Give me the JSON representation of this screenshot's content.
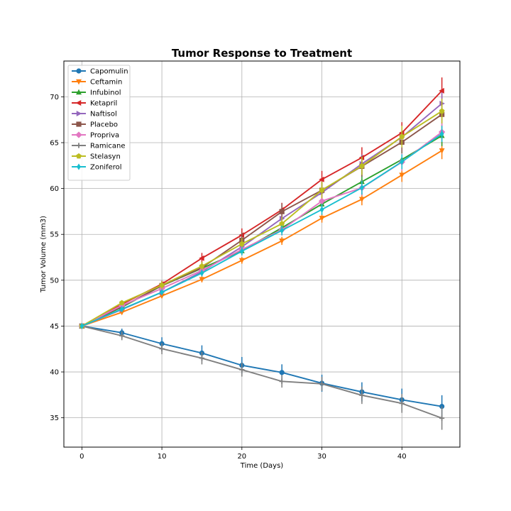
{
  "chart_data": {
    "type": "line",
    "title": "Tumor Response to Treatment",
    "xlabel": "Time (Days)",
    "ylabel": "Tumor Volume (mm3)",
    "xlim": [
      -2.25,
      47.25
    ],
    "ylim": [
      31.8,
      73.9
    ],
    "xticks": [
      0,
      10,
      20,
      30,
      40
    ],
    "yticks": [
      35,
      40,
      45,
      50,
      55,
      60,
      65,
      70
    ],
    "grid": true,
    "legend_position": "upper-left",
    "x": [
      0,
      5,
      10,
      15,
      20,
      25,
      30,
      35,
      40,
      45
    ],
    "series": [
      {
        "name": "Capomulin",
        "color": "#1f77b4",
        "marker": "circle",
        "values": [
          45.0,
          44.27,
          43.08,
          42.06,
          40.72,
          39.94,
          38.77,
          37.82,
          36.96,
          36.24
        ],
        "errors": [
          0,
          0.45,
          0.7,
          0.84,
          0.91,
          0.89,
          0.93,
          1.05,
          1.22,
          1.22
        ]
      },
      {
        "name": "Ceftamin",
        "color": "#ff7f0e",
        "marker": "triangle-down",
        "values": [
          45.0,
          46.5,
          48.29,
          50.09,
          52.16,
          54.29,
          56.77,
          58.83,
          61.47,
          64.13
        ],
        "errors": [
          0,
          0.16,
          0.24,
          0.33,
          0.36,
          0.44,
          0.49,
          0.66,
          0.75,
          0.93
        ]
      },
      {
        "name": "Infubinol",
        "color": "#2ca02c",
        "marker": "triangle-up",
        "values": [
          45.0,
          47.06,
          49.4,
          51.3,
          53.2,
          55.72,
          58.3,
          60.74,
          63.16,
          65.76
        ],
        "errors": [
          0,
          0.24,
          0.28,
          0.36,
          0.48,
          0.55,
          0.63,
          0.98,
          1.06,
          1.14
        ]
      },
      {
        "name": "Ketapril",
        "color": "#d62728",
        "marker": "triangle-left",
        "values": [
          45.0,
          47.39,
          49.58,
          52.4,
          54.92,
          57.68,
          60.99,
          63.37,
          66.07,
          70.66
        ],
        "errors": [
          0,
          0.26,
          0.36,
          0.58,
          0.73,
          0.76,
          0.93,
          1.13,
          1.16,
          1.45
        ]
      },
      {
        "name": "Naftisol",
        "color": "#9467bd",
        "marker": "triangle-right",
        "values": [
          45.0,
          46.8,
          48.69,
          50.93,
          53.64,
          56.73,
          59.56,
          62.69,
          65.6,
          69.27
        ],
        "errors": [
          0,
          0.2,
          0.35,
          0.5,
          0.6,
          0.81,
          0.98,
          1.01,
          1.08,
          1.21
        ]
      },
      {
        "name": "Placebo",
        "color": "#8c564b",
        "marker": "square",
        "values": [
          45.0,
          47.13,
          49.42,
          51.36,
          54.36,
          57.48,
          59.81,
          62.42,
          65.05,
          68.08
        ],
        "errors": [
          0,
          0.22,
          0.4,
          0.61,
          0.84,
          0.88,
          0.93,
          1.13,
          1.16,
          1.29
        ]
      },
      {
        "name": "Propriva",
        "color": "#e377c2",
        "marker": "diamond",
        "values": [
          45.0,
          47.25,
          49.1,
          51.07,
          53.35,
          55.5,
          58.63,
          60.07,
          62.89,
          66.16
        ],
        "errors": [
          0,
          0.23,
          0.38,
          0.47,
          0.56,
          0.63,
          0.72,
          0.84,
          0.95,
          1.07
        ]
      },
      {
        "name": "Ramicane",
        "color": "#7f7f7f",
        "marker": "plus",
        "values": [
          45.0,
          43.94,
          42.53,
          41.5,
          40.24,
          38.97,
          38.7,
          37.45,
          36.57,
          34.96
        ],
        "errors": [
          0,
          0.48,
          0.6,
          0.68,
          0.75,
          0.68,
          0.76,
          0.94,
          1.03,
          1.27
        ]
      },
      {
        "name": "Stelasyn",
        "color": "#bcbd22",
        "marker": "pentagon",
        "values": [
          45.0,
          47.53,
          49.46,
          51.53,
          53.96,
          56.16,
          59.83,
          62.46,
          65.66,
          68.44
        ],
        "errors": [
          0,
          0.24,
          0.43,
          0.49,
          0.62,
          0.74,
          0.9,
          0.98,
          1.18,
          1.35
        ]
      },
      {
        "name": "Zoniferol",
        "color": "#17becf",
        "marker": "thin-diamond",
        "values": [
          45.0,
          46.85,
          48.69,
          50.78,
          53.17,
          55.43,
          57.71,
          60.09,
          62.92,
          65.96
        ],
        "errors": [
          0,
          0.19,
          0.26,
          0.36,
          0.44,
          0.53,
          0.59,
          0.76,
          0.81,
          0.88
        ]
      }
    ]
  }
}
